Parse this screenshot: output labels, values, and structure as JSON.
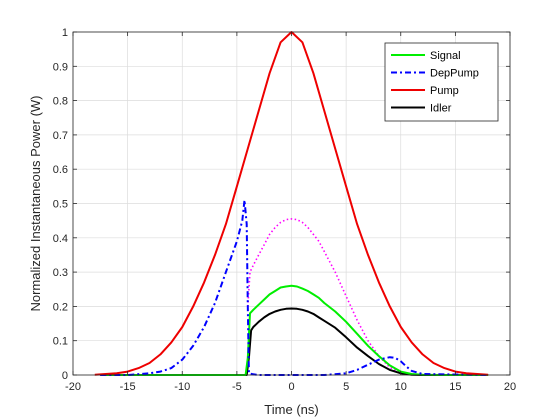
{
  "chart_data": {
    "type": "line",
    "title": "",
    "xlabel": "Time (ns)",
    "ylabel": "Normalized Instantaneous Power (W)",
    "xlim": [
      -20,
      20
    ],
    "ylim": [
      0,
      1
    ],
    "xticks": [
      "-20",
      "-15",
      "-10",
      "-5",
      "0",
      "5",
      "10",
      "15",
      "20"
    ],
    "yticks": [
      "0",
      "0.1",
      "0.2",
      "0.3",
      "0.4",
      "0.5",
      "0.6",
      "0.7",
      "0.8",
      "0.9",
      "1"
    ],
    "grid": true,
    "legend_position": "top-right",
    "series": [
      {
        "name": "Signal",
        "color": "#00ee00",
        "style": "solid",
        "x": [
          -17.5,
          -4.3,
          -4.2,
          -4.0,
          -3.8,
          -3.5,
          -3,
          -2.5,
          -2,
          -1.5,
          -1,
          -0.5,
          0,
          0.5,
          1,
          1.5,
          2,
          2.5,
          3,
          4,
          5,
          6,
          7,
          8,
          9,
          10,
          11,
          12,
          14,
          18
        ],
        "y": [
          0,
          0,
          0,
          0.05,
          0.18,
          0.19,
          0.205,
          0.22,
          0.235,
          0.245,
          0.255,
          0.258,
          0.26,
          0.258,
          0.252,
          0.245,
          0.235,
          0.225,
          0.21,
          0.185,
          0.155,
          0.12,
          0.085,
          0.055,
          0.028,
          0.01,
          0.003,
          0.001,
          0,
          0
        ]
      },
      {
        "name": "DepPump",
        "color": "#0000ff",
        "style": "dashdot",
        "x": [
          -17.5,
          -15,
          -13,
          -12,
          -11,
          -10,
          -9,
          -8,
          -7,
          -6,
          -5,
          -4.5,
          -4.3,
          -4.1,
          -4.0,
          -3.9,
          -3.5,
          -3,
          0,
          3,
          5,
          6,
          7,
          8,
          9,
          9.5,
          10,
          10.5,
          11,
          12,
          18
        ],
        "y": [
          0,
          0,
          0.005,
          0.01,
          0.02,
          0.045,
          0.085,
          0.14,
          0.21,
          0.3,
          0.39,
          0.45,
          0.51,
          0.44,
          0.2,
          0.005,
          0.002,
          0,
          0,
          0,
          0.005,
          0.015,
          0.03,
          0.045,
          0.052,
          0.05,
          0.04,
          0.025,
          0.012,
          0.003,
          0
        ]
      },
      {
        "name": "Pump",
        "color": "#ee0000",
        "style": "solid",
        "x": [
          -18,
          -16,
          -15,
          -14,
          -13,
          -12,
          -11,
          -10,
          -9,
          -8,
          -7,
          -6,
          -5,
          -4,
          -3,
          -2,
          -1,
          0,
          1,
          2,
          3,
          4,
          5,
          6,
          7,
          8,
          9,
          10,
          11,
          12,
          13,
          14,
          15,
          16,
          18
        ],
        "y": [
          0.001,
          0.005,
          0.01,
          0.02,
          0.035,
          0.06,
          0.095,
          0.14,
          0.2,
          0.27,
          0.35,
          0.44,
          0.55,
          0.66,
          0.77,
          0.88,
          0.97,
          1.0,
          0.97,
          0.88,
          0.77,
          0.66,
          0.55,
          0.44,
          0.35,
          0.27,
          0.2,
          0.14,
          0.095,
          0.06,
          0.035,
          0.02,
          0.01,
          0.005,
          0.001
        ]
      },
      {
        "name": "Idler",
        "color": "#000000",
        "style": "solid",
        "x": [
          -17.5,
          -4.3,
          -4.1,
          -3.9,
          -3.7,
          -3.5,
          -3,
          -2.5,
          -2,
          -1.5,
          -1,
          -0.5,
          0,
          0.5,
          1,
          1.5,
          2,
          2.5,
          3,
          4,
          5,
          6,
          7,
          8,
          9,
          10,
          11,
          12,
          14,
          18
        ],
        "y": [
          0,
          0,
          0,
          0.05,
          0.13,
          0.14,
          0.155,
          0.168,
          0.178,
          0.185,
          0.19,
          0.193,
          0.194,
          0.193,
          0.19,
          0.185,
          0.178,
          0.168,
          0.158,
          0.138,
          0.11,
          0.08,
          0.055,
          0.032,
          0.015,
          0.005,
          0.001,
          0,
          0,
          0
        ]
      },
      {
        "color": "#ff00ff",
        "style": "dotted",
        "x": [
          -4.0,
          -3.8,
          -3.5,
          -3,
          -2.5,
          -2,
          -1.5,
          -1,
          -0.5,
          0,
          0.5,
          1,
          1.5,
          2,
          2.5,
          3,
          4,
          5,
          6,
          7,
          8,
          9,
          10,
          11,
          12
        ],
        "y": [
          0.2,
          0.3,
          0.32,
          0.35,
          0.38,
          0.41,
          0.43,
          0.445,
          0.453,
          0.455,
          0.453,
          0.445,
          0.43,
          0.41,
          0.39,
          0.36,
          0.3,
          0.23,
          0.16,
          0.1,
          0.055,
          0.022,
          0.007,
          0.002,
          0
        ]
      }
    ]
  }
}
